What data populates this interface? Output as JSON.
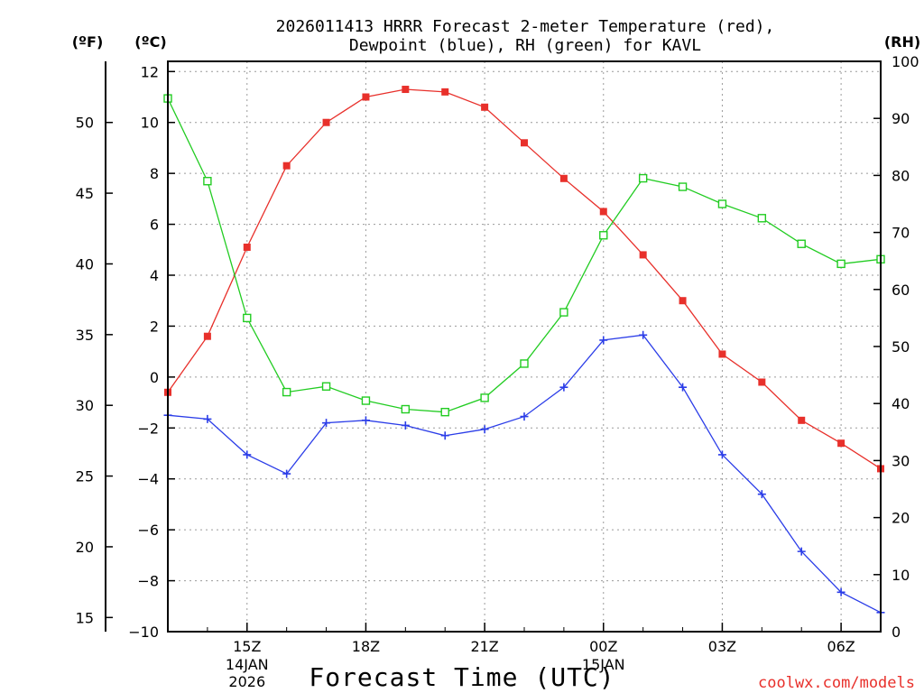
{
  "chart_data": {
    "type": "line",
    "title_line1": "2026011413 HRRR Forecast 2-meter Temperature (red),",
    "title_line2": "Dewpoint (blue), RH (green) for KAVL",
    "xlabel": "Forecast Time (UTC)",
    "credit": "coolwx.com/models",
    "units": {
      "fahrenheit": "(ºF)",
      "celsius": "(ºC)",
      "rh": "(RH)"
    },
    "x_hours": [
      13,
      14,
      15,
      16,
      17,
      18,
      19,
      20,
      21,
      22,
      23,
      24,
      25,
      26,
      27,
      28,
      29,
      30,
      31
    ],
    "x_ticks": [
      {
        "hour": 15,
        "label": "15Z",
        "sub1": "14JAN",
        "sub2": "2026"
      },
      {
        "hour": 18,
        "label": "18Z",
        "sub1": "",
        "sub2": ""
      },
      {
        "hour": 21,
        "label": "21Z",
        "sub1": "",
        "sub2": ""
      },
      {
        "hour": 24,
        "label": "00Z",
        "sub1": "15JAN",
        "sub2": ""
      },
      {
        "hour": 27,
        "label": "03Z",
        "sub1": "",
        "sub2": ""
      },
      {
        "hour": 30,
        "label": "06Z",
        "sub1": "",
        "sub2": ""
      }
    ],
    "celsius_axis": {
      "min": -10,
      "max": 12.4,
      "ticks": [
        -10,
        -8,
        -6,
        -4,
        -2,
        0,
        2,
        4,
        6,
        8,
        10,
        12
      ]
    },
    "fahrenheit_axis": {
      "ticks": [
        15,
        20,
        25,
        30,
        35,
        40,
        45,
        50
      ]
    },
    "rh_axis": {
      "min": 0,
      "max": 100,
      "ticks": [
        0,
        10,
        20,
        30,
        40,
        50,
        60,
        70,
        80,
        90,
        100
      ]
    },
    "series": [
      {
        "name": "Temperature",
        "unit": "C",
        "color": "#e8302b",
        "marker": "filled-square",
        "values": [
          -0.6,
          1.6,
          5.1,
          8.3,
          10.0,
          11.0,
          11.3,
          11.2,
          10.6,
          9.2,
          7.8,
          6.5,
          4.8,
          3.0,
          0.9,
          -0.2,
          -1.7,
          -2.6,
          -3.6
        ]
      },
      {
        "name": "Dewpoint",
        "unit": "C",
        "color": "#2b3de8",
        "marker": "plus",
        "values": [
          -1.5,
          -1.65,
          -3.05,
          -3.8,
          -1.8,
          -1.7,
          -1.9,
          -2.3,
          -2.05,
          -1.55,
          -0.4,
          1.45,
          1.65,
          -0.4,
          -3.05,
          -4.6,
          -6.85,
          -8.45,
          -9.25
        ]
      },
      {
        "name": "RH",
        "unit": "%",
        "color": "#22cc22",
        "marker": "open-square",
        "values": [
          93.5,
          79,
          55,
          42,
          43,
          40.5,
          39,
          38.5,
          41,
          47,
          56,
          69.5,
          79.5,
          78,
          75,
          72.5,
          68,
          64.5,
          65.3
        ]
      }
    ]
  }
}
